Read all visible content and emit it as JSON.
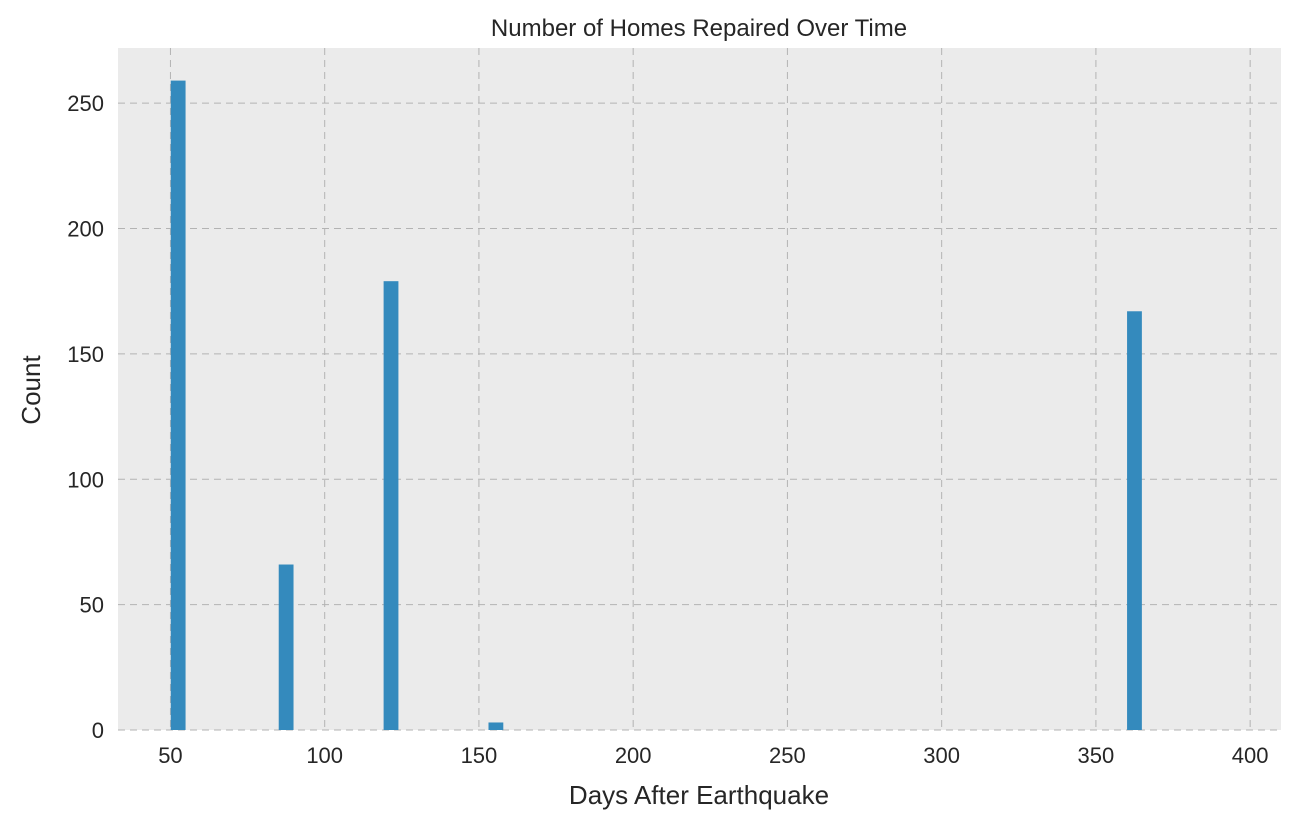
{
  "chart_data": {
    "type": "bar",
    "title": "Number of Homes Repaired Over Time",
    "xlabel": "Days After Earthquake",
    "ylabel": "Count",
    "x": [
      52.5,
      87.5,
      121.5,
      155.5,
      362.5
    ],
    "values": [
      259,
      66,
      179,
      3,
      167
    ],
    "xlim": [
      33,
      410
    ],
    "ylim": [
      0,
      272
    ],
    "xticks": [
      50,
      100,
      150,
      200,
      250,
      300,
      350,
      400
    ],
    "yticks": [
      0,
      50,
      100,
      150,
      200,
      250
    ],
    "grid": true,
    "colors": {
      "bar": "#348abd",
      "plot_background": "#ebebeb",
      "grid": "#b3b3b3",
      "text": "#262626"
    }
  }
}
